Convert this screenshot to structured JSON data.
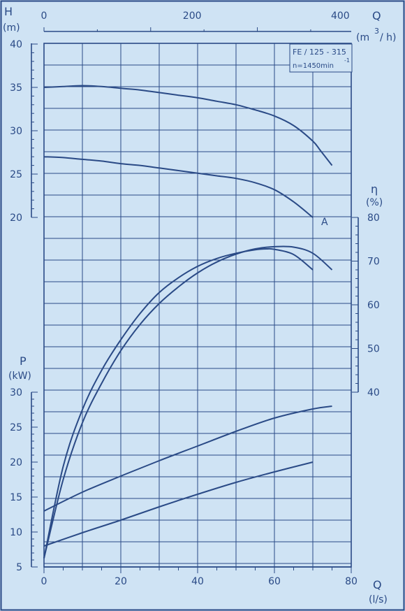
{
  "chart_data": {
    "type": "line",
    "title": "",
    "info_box": [
      "FE / 125 - 315",
      "n=1450min",
      "-1"
    ],
    "colors": {
      "background": "#cfe3f4",
      "ink": "#2a4a86",
      "grid": "#2a4a86"
    },
    "x_axis": {
      "symbol": "Q",
      "unit": "(l/s)",
      "range": [
        0,
        80
      ],
      "ticks": [
        "0",
        "20",
        "40",
        "60",
        "80"
      ]
    },
    "x2_axis": {
      "symbol": "Q",
      "unit": "(m",
      "unit_sup": "3",
      "unit_tail": "/ h)",
      "ticks": [
        "0",
        "200",
        "400"
      ]
    },
    "h_axis": {
      "symbol": "H",
      "unit": "(m)",
      "range": [
        20,
        40
      ],
      "ticks": [
        "20",
        "25",
        "30",
        "35",
        "40"
      ]
    },
    "eta_axis": {
      "symbol": "η",
      "unit": "(%)",
      "range": [
        40,
        80
      ],
      "ticks": [
        "40",
        "50",
        "60",
        "70",
        "80"
      ]
    },
    "p_axis": {
      "symbol": "P",
      "unit": "(kW)",
      "range": [
        5,
        30
      ],
      "ticks": [
        "5",
        "10",
        "15",
        "20",
        "25",
        "30"
      ]
    },
    "curve_label": "A",
    "grid": true,
    "series": [
      {
        "group": "head",
        "x": [
          0,
          5,
          10,
          15,
          20,
          25,
          30,
          35,
          40,
          45,
          50,
          55,
          60,
          65,
          70,
          72,
          75
        ],
        "y": [
          35.0,
          35.1,
          35.2,
          35.1,
          34.9,
          34.7,
          34.4,
          34.1,
          33.8,
          33.4,
          33.0,
          32.4,
          31.7,
          30.6,
          28.8,
          27.7,
          26.0
        ]
      },
      {
        "group": "head",
        "x": [
          0,
          5,
          10,
          15,
          20,
          25,
          30,
          35,
          40,
          45,
          50,
          55,
          60,
          65,
          70
        ],
        "y": [
          27.0,
          26.9,
          26.7,
          26.5,
          26.2,
          26.0,
          25.7,
          25.4,
          25.1,
          24.8,
          24.5,
          24.0,
          23.2,
          21.8,
          20.0
        ]
      },
      {
        "group": "eta",
        "x": [
          0,
          5,
          10,
          15,
          20,
          25,
          30,
          35,
          40,
          45,
          50,
          55,
          58,
          60,
          65,
          70
        ],
        "y": [
          2.0,
          23.0,
          36.0,
          45.0,
          52.0,
          58.0,
          62.8,
          66.2,
          68.8,
          70.6,
          71.8,
          72.6,
          72.8,
          72.7,
          71.5,
          68.0
        ]
      },
      {
        "group": "eta",
        "x": [
          0,
          5,
          10,
          15,
          20,
          25,
          30,
          35,
          40,
          45,
          50,
          55,
          60,
          65,
          70,
          75
        ],
        "y": [
          2.0,
          20.0,
          33.0,
          42.0,
          49.5,
          55.5,
          60.3,
          64.1,
          67.3,
          69.8,
          71.6,
          72.8,
          73.3,
          73.2,
          71.8,
          68.0
        ]
      },
      {
        "group": "power",
        "x": [
          0,
          10,
          20,
          30,
          40,
          50,
          60,
          70,
          75
        ],
        "y": [
          13.0,
          15.7,
          18.0,
          20.2,
          22.3,
          24.4,
          26.3,
          27.6,
          28.0
        ]
      },
      {
        "group": "power",
        "x": [
          0,
          10,
          20,
          30,
          40,
          50,
          60,
          70
        ],
        "y": [
          8.0,
          9.9,
          11.7,
          13.6,
          15.4,
          17.1,
          18.6,
          20.0
        ]
      }
    ]
  }
}
